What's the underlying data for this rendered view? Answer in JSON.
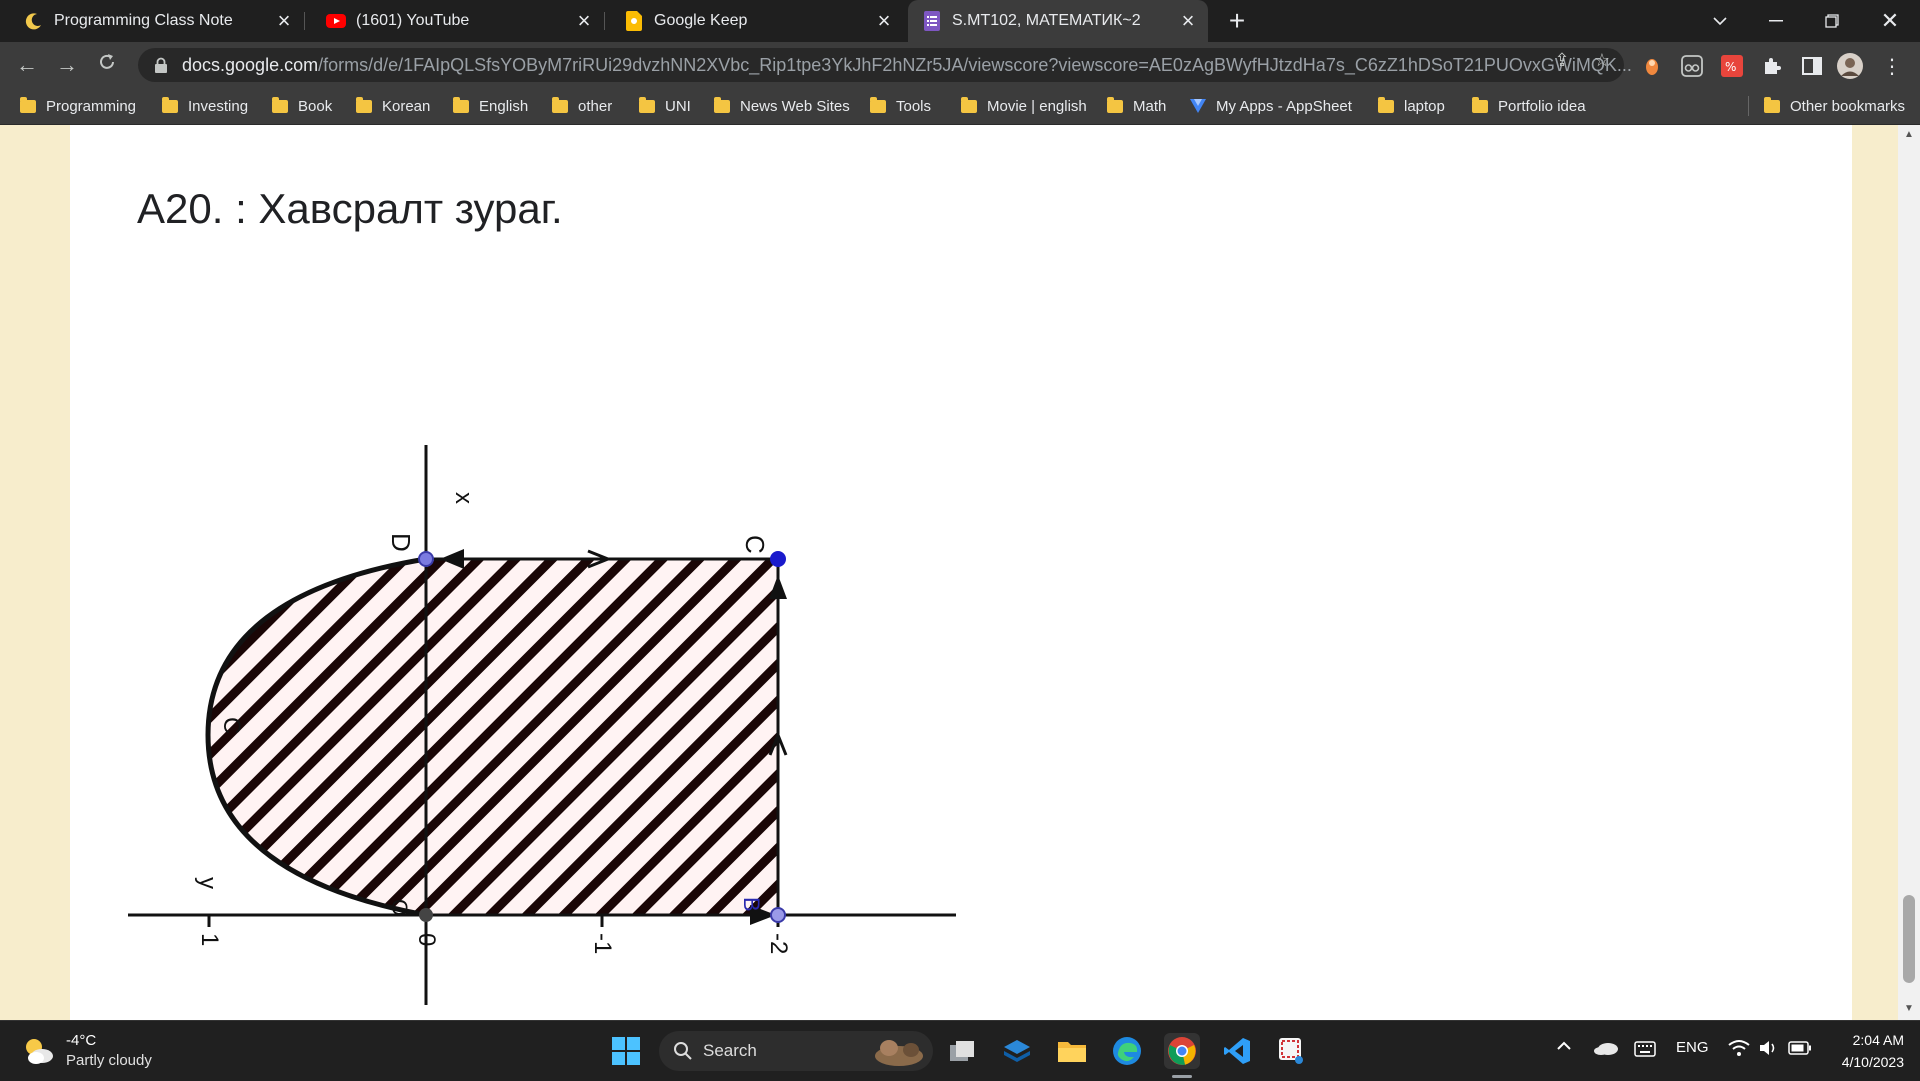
{
  "browser": {
    "tabs": [
      {
        "title": "Programming Class Note",
        "icon": "moon-icon",
        "active": false
      },
      {
        "title": "(1601) YouTube",
        "icon": "youtube-icon",
        "active": false
      },
      {
        "title": "Google Keep",
        "icon": "keep-icon",
        "active": false
      },
      {
        "title": "S.MT102, МАТЕМАТИК~2",
        "icon": "forms-icon",
        "active": true
      }
    ],
    "url_domain": "docs.google.com",
    "url_path": "/forms/d/e/1FAIpQLSfsYOByM7riRUi29dvzhNN2XVbc_Rip1tpe3YkJhF2hNZr5JA/viewscore?viewscore=AE0zAgBWyfHJtzdHa7s_C6zZ1hDSoT21PUOvxGWiMQK...",
    "bookmarks": [
      "Programming",
      "Investing",
      "Book",
      "Korean",
      "English",
      "other",
      "UNI",
      "News Web Sites",
      "Tools",
      "Movie | english",
      "Math",
      "My Apps - AppSheet",
      "laptop",
      "Portfolio idea"
    ],
    "other_bookmarks": "Other bookmarks"
  },
  "question": {
    "title": "A20. :   Хавсралт зураг."
  },
  "figure": {
    "labels": {
      "axis_x": "x",
      "axis_y": "y",
      "D": "D",
      "C": "C",
      "B": "B",
      "O": "O",
      "arc": "C",
      "tick_1": "1",
      "tick_0": "0",
      "tick_m1": "-1",
      "tick_m2": "-2"
    }
  },
  "taskbar": {
    "temp": "-4°C",
    "weather": "Partly cloudy",
    "search": "Search",
    "lang": "ENG",
    "time": "2:04 AM",
    "date": "4/10/2023"
  },
  "colors": {
    "tab_bg": "#1f1f1f",
    "toolbar_bg": "#3c3c3c",
    "page_bg": "#ffffff",
    "side_bg": "#f7edcc",
    "point_blue": "#1a1acc"
  }
}
